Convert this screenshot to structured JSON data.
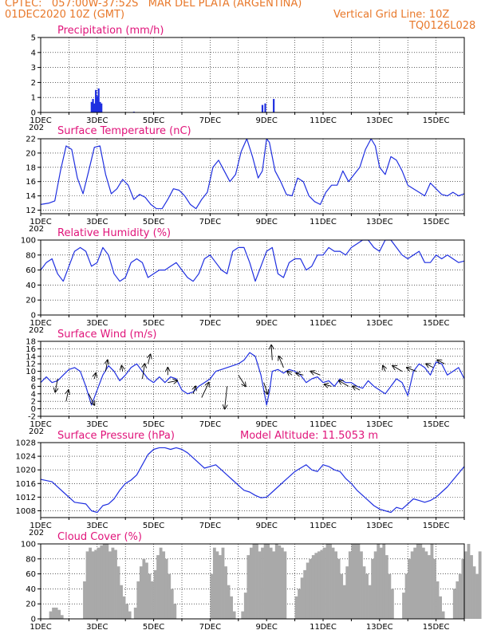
{
  "header": {
    "line1": "CPTEC:   057:00W-37:52S   MAR DEL PLATA (ARGENTINA)",
    "line2_left": "01DEC2020 10Z (GMT)",
    "line2_right": "Vertical Grid Line: 10Z",
    "line3_right": "TQ0126L028"
  },
  "colors": {
    "header": "#e8782a",
    "title": "#e0147a",
    "series": "#1f2fe0",
    "bars": "#1f2fe0",
    "cloud": "#a9a9a9",
    "arrows": "#000000"
  },
  "x_axis": {
    "labels": [
      "1DEC",
      "3DEC",
      "5DEC",
      "7DEC",
      "9DEC",
      "11DEC",
      "13DEC",
      "15DEC"
    ],
    "label_days": [
      1,
      3,
      5,
      7,
      9,
      11,
      13,
      15
    ],
    "grid_days": [
      1,
      2,
      3,
      4,
      5,
      6,
      7,
      8,
      9,
      10,
      11,
      12,
      13,
      14,
      15,
      16
    ],
    "start_day": 1,
    "end_day": 16,
    "corner_text": "202"
  },
  "chart_data": [
    {
      "type": "bar",
      "title": "Precipitation (mm/h)",
      "ylim": [
        0,
        5
      ],
      "yticks": [
        "0",
        "1",
        "2",
        "3",
        "4",
        "5"
      ],
      "ytick_values": [
        0,
        1,
        2,
        3,
        4,
        5
      ],
      "x_day": [
        2.8,
        2.85,
        2.9,
        2.95,
        3.0,
        3.05,
        3.1,
        3.15,
        4.3,
        8.85,
        8.95,
        9.25
      ],
      "values": [
        0.7,
        0.9,
        0.6,
        1.5,
        1.1,
        1.6,
        0.7,
        0.6,
        0.05,
        0.5,
        0.6,
        0.9
      ]
    },
    {
      "type": "line",
      "title": "Surface Temperature (nC)",
      "ylim": [
        11.5,
        22
      ],
      "yticks": [
        "12",
        "14",
        "16",
        "18",
        "20",
        "22"
      ],
      "ytick_values": [
        12,
        14,
        16,
        18,
        20,
        22
      ],
      "x_day": [
        1.0,
        1.3,
        1.5,
        1.7,
        1.9,
        2.1,
        2.3,
        2.5,
        2.7,
        2.9,
        3.1,
        3.3,
        3.5,
        3.7,
        3.9,
        4.1,
        4.3,
        4.5,
        4.7,
        4.9,
        5.1,
        5.3,
        5.5,
        5.7,
        5.9,
        6.1,
        6.3,
        6.5,
        6.7,
        6.9,
        7.1,
        7.3,
        7.5,
        7.7,
        7.9,
        8.1,
        8.3,
        8.5,
        8.7,
        8.85,
        9.0,
        9.1,
        9.3,
        9.5,
        9.7,
        9.9,
        10.1,
        10.3,
        10.5,
        10.7,
        10.9,
        11.1,
        11.3,
        11.5,
        11.7,
        11.9,
        12.1,
        12.3,
        12.5,
        12.7,
        12.85,
        13.0,
        13.2,
        13.4,
        13.6,
        13.8,
        14.0,
        14.2,
        14.4,
        14.6,
        14.8,
        15.0,
        15.2,
        15.4,
        15.6,
        15.8,
        16.0
      ],
      "values": [
        12.8,
        13.0,
        13.3,
        17.5,
        21.0,
        20.5,
        16.5,
        14.3,
        17.5,
        20.8,
        21.0,
        17.0,
        14.3,
        15.0,
        16.3,
        15.5,
        13.5,
        14.2,
        13.8,
        12.8,
        12.2,
        12.2,
        13.5,
        15.0,
        14.8,
        14.0,
        12.8,
        12.2,
        13.5,
        14.5,
        18.0,
        19.0,
        17.5,
        16.0,
        17.0,
        20.2,
        22.0,
        19.5,
        16.5,
        17.5,
        22.0,
        21.5,
        17.5,
        16.0,
        14.2,
        14.0,
        16.5,
        16.0,
        14.0,
        13.2,
        12.8,
        14.5,
        15.5,
        15.5,
        17.5,
        16.0,
        17.0,
        18.0,
        20.5,
        22.0,
        21.0,
        18.0,
        17.0,
        19.5,
        19.0,
        17.5,
        15.5,
        15.0,
        14.5,
        14.0,
        15.8,
        15.0,
        14.2,
        14.0,
        14.5,
        14.0,
        14.3
      ]
    },
    {
      "type": "line",
      "title": "Relative Humidity (%)",
      "ylim": [
        0,
        100
      ],
      "yticks": [
        "0",
        "20",
        "40",
        "60",
        "80",
        "100"
      ],
      "ytick_values": [
        0,
        20,
        40,
        60,
        80,
        100
      ],
      "x_day": [
        1.0,
        1.2,
        1.4,
        1.6,
        1.8,
        2.0,
        2.2,
        2.4,
        2.6,
        2.8,
        3.0,
        3.2,
        3.4,
        3.6,
        3.8,
        4.0,
        4.2,
        4.4,
        4.6,
        4.8,
        5.0,
        5.2,
        5.4,
        5.6,
        5.8,
        6.0,
        6.2,
        6.4,
        6.6,
        6.8,
        7.0,
        7.2,
        7.4,
        7.6,
        7.8,
        8.0,
        8.2,
        8.4,
        8.6,
        8.8,
        9.0,
        9.2,
        9.4,
        9.6,
        9.8,
        10.0,
        10.2,
        10.4,
        10.6,
        10.8,
        11.0,
        11.2,
        11.4,
        11.6,
        11.8,
        12.0,
        12.2,
        12.4,
        12.6,
        12.8,
        13.0,
        13.2,
        13.4,
        13.6,
        13.8,
        14.0,
        14.2,
        14.4,
        14.6,
        14.8,
        15.0,
        15.2,
        15.4,
        15.6,
        15.8,
        16.0
      ],
      "values": [
        60,
        70,
        75,
        55,
        45,
        65,
        85,
        90,
        85,
        65,
        70,
        90,
        80,
        55,
        45,
        50,
        70,
        75,
        70,
        50,
        55,
        60,
        60,
        65,
        70,
        60,
        50,
        45,
        55,
        75,
        80,
        70,
        60,
        55,
        85,
        90,
        90,
        70,
        45,
        65,
        85,
        90,
        55,
        50,
        70,
        75,
        75,
        60,
        65,
        80,
        80,
        90,
        85,
        85,
        80,
        90,
        95,
        100,
        100,
        90,
        85,
        100,
        100,
        90,
        80,
        75,
        80,
        85,
        70,
        70,
        80,
        75,
        80,
        75,
        70,
        72
      ]
    },
    {
      "type": "line",
      "title": "Surface Wind (m/s)",
      "ylim": [
        -2,
        18
      ],
      "yticks": [
        "-2",
        "0",
        "2",
        "4",
        "6",
        "8",
        "10",
        "12",
        "14",
        "16",
        "18"
      ],
      "ytick_values": [
        -2,
        0,
        2,
        4,
        6,
        8,
        10,
        12,
        14,
        16,
        18
      ],
      "x_day": [
        1.0,
        1.2,
        1.4,
        1.6,
        1.8,
        2.0,
        2.2,
        2.4,
        2.6,
        2.8,
        3.0,
        3.2,
        3.4,
        3.6,
        3.8,
        4.0,
        4.2,
        4.4,
        4.6,
        4.8,
        5.0,
        5.2,
        5.4,
        5.6,
        5.8,
        6.0,
        6.2,
        6.4,
        6.6,
        6.8,
        7.0,
        7.2,
        7.4,
        7.6,
        7.8,
        8.0,
        8.2,
        8.4,
        8.6,
        8.8,
        9.0,
        9.1,
        9.2,
        9.4,
        9.6,
        9.8,
        10.0,
        10.2,
        10.4,
        10.6,
        10.8,
        11.0,
        11.2,
        11.4,
        11.6,
        11.8,
        12.0,
        12.2,
        12.4,
        12.6,
        12.8,
        13.0,
        13.2,
        13.4,
        13.6,
        13.8,
        14.0,
        14.2,
        14.4,
        14.6,
        14.8,
        15.0,
        15.2,
        15.4,
        15.6,
        15.8,
        16.0
      ],
      "values": [
        7,
        8.5,
        7,
        7.5,
        9,
        10.5,
        11,
        10,
        6,
        1,
        5,
        9,
        11.5,
        10,
        7.5,
        9,
        11,
        12,
        10,
        8,
        7,
        8.5,
        7,
        8.5,
        8,
        5,
        4,
        4.5,
        6,
        7,
        8,
        10,
        10.5,
        11,
        11.5,
        12,
        13,
        15,
        14,
        9,
        1,
        4.5,
        10,
        10.5,
        9.5,
        10.5,
        10,
        9,
        7,
        8,
        8.5,
        7,
        7.5,
        6,
        8,
        7,
        7,
        6,
        5.5,
        7.5,
        6,
        5,
        4,
        6,
        8,
        7,
        3.5,
        10,
        12,
        11,
        9,
        12.5,
        12,
        9,
        10,
        11,
        8
      ]
    },
    {
      "type": "line",
      "title": "Surface Pressure (hPa)",
      "annotation": "Model Altitude: 11.5053 m",
      "ylim": [
        1006,
        1028
      ],
      "yticks": [
        "1008",
        "1012",
        "1016",
        "1020",
        "1024",
        "1028"
      ],
      "ytick_values": [
        1008,
        1012,
        1016,
        1020,
        1024,
        1028
      ],
      "x_day": [
        1.0,
        1.4,
        1.8,
        2.2,
        2.6,
        2.8,
        3.0,
        3.2,
        3.4,
        3.6,
        3.8,
        4.0,
        4.2,
        4.4,
        4.6,
        4.8,
        5.0,
        5.2,
        5.4,
        5.6,
        5.8,
        6.0,
        6.2,
        6.4,
        6.6,
        6.8,
        7.0,
        7.2,
        7.4,
        7.6,
        7.8,
        8.0,
        8.2,
        8.4,
        8.6,
        8.8,
        9.0,
        9.2,
        9.4,
        9.6,
        9.8,
        10.0,
        10.2,
        10.4,
        10.6,
        10.8,
        11.0,
        11.2,
        11.4,
        11.6,
        11.8,
        12.0,
        12.2,
        12.4,
        12.6,
        12.8,
        13.0,
        13.2,
        13.4,
        13.6,
        13.8,
        14.0,
        14.2,
        14.4,
        14.6,
        14.8,
        15.0,
        15.2,
        15.4,
        15.6,
        15.8,
        16.0
      ],
      "values": [
        1017.2,
        1016.5,
        1013.5,
        1010.5,
        1010,
        1008,
        1007.5,
        1009.5,
        1010,
        1011.5,
        1014,
        1016,
        1017,
        1018.5,
        1021.5,
        1024.5,
        1026,
        1026.5,
        1026.5,
        1026,
        1026.5,
        1026,
        1025,
        1023.5,
        1022,
        1020.5,
        1021,
        1021.5,
        1020,
        1018.5,
        1017,
        1015.5,
        1014,
        1013.5,
        1012.5,
        1011.8,
        1012,
        1013.5,
        1015,
        1016.5,
        1018,
        1019.5,
        1020.5,
        1021.5,
        1020,
        1019.5,
        1021.5,
        1021,
        1020,
        1019.5,
        1017.5,
        1016,
        1014,
        1012.5,
        1011,
        1009.5,
        1008.5,
        1008,
        1007.5,
        1009,
        1008.5,
        1010,
        1011.5,
        1011,
        1010.5,
        1011,
        1012,
        1013.5,
        1015,
        1017,
        1019,
        1021
      ]
    },
    {
      "type": "bar",
      "title": "Cloud Cover (%)",
      "ylim": [
        0,
        100
      ],
      "yticks": [
        "0",
        "20",
        "40",
        "60",
        "80",
        "100"
      ],
      "ytick_values": [
        0,
        20,
        40,
        60,
        80,
        100
      ],
      "x_day_start": 1.0,
      "x_day_step": 0.1,
      "values": [
        0,
        0,
        0,
        10,
        15,
        15,
        12,
        5,
        0,
        0,
        0,
        0,
        0,
        0,
        0,
        50,
        90,
        95,
        90,
        92,
        95,
        98,
        100,
        100,
        90,
        95,
        92,
        70,
        45,
        30,
        20,
        10,
        0,
        15,
        50,
        70,
        80,
        75,
        60,
        50,
        65,
        85,
        95,
        90,
        80,
        60,
        40,
        20,
        0,
        0,
        0,
        0,
        0,
        0,
        0,
        0,
        0,
        0,
        0,
        0,
        60,
        95,
        90,
        85,
        95,
        70,
        45,
        30,
        10,
        0,
        0,
        10,
        35,
        85,
        95,
        100,
        100,
        90,
        95,
        100,
        100,
        95,
        90,
        100,
        98,
        95,
        90,
        0,
        0,
        0,
        30,
        40,
        55,
        65,
        75,
        80,
        85,
        88,
        90,
        92,
        95,
        100,
        100,
        95,
        90,
        80,
        60,
        45,
        70,
        90,
        100,
        100,
        100,
        90,
        70,
        60,
        45,
        80,
        90,
        100,
        95,
        100,
        85,
        60,
        40,
        0,
        0,
        0,
        35,
        60,
        80,
        90,
        95,
        100,
        100,
        95,
        90,
        85,
        100,
        80,
        50,
        30,
        10,
        0,
        0,
        0,
        40,
        50,
        60,
        80,
        90,
        100,
        85,
        70,
        60,
        90
      ]
    }
  ],
  "wind_arrows": [
    {
      "x_day": 1.6,
      "y": 8,
      "u": -0.5,
      "v": -3.5
    },
    {
      "x_day": 1.9,
      "y": 2,
      "u": 0.5,
      "v": 3
    },
    {
      "x_day": 2.7,
      "y": 4,
      "u": 1.2,
      "v": -3
    },
    {
      "x_day": 2.9,
      "y": 8,
      "u": 0.3,
      "v": 1.5
    },
    {
      "x_day": 3.3,
      "y": 10,
      "u": 0.4,
      "v": 3
    },
    {
      "x_day": 3.9,
      "y": 10,
      "u": -0.2,
      "v": 1.5
    },
    {
      "x_day": 4.6,
      "y": 8,
      "u": 0.5,
      "v": 4
    },
    {
      "x_day": 4.8,
      "y": 12,
      "u": 0.5,
      "v": 2.5
    },
    {
      "x_day": 5.5,
      "y": 9,
      "u": 0,
      "v": 2
    },
    {
      "x_day": 5.5,
      "y": 7,
      "u": 2,
      "v": 0.5
    },
    {
      "x_day": 6.4,
      "y": 4,
      "u": 0.5,
      "v": 2
    },
    {
      "x_day": 6.7,
      "y": 3,
      "u": 1.5,
      "v": 4
    },
    {
      "x_day": 7.6,
      "y": 6,
      "u": -0.5,
      "v": -6
    },
    {
      "x_day": 8.0,
      "y": 9,
      "u": 1.5,
      "v": -3
    },
    {
      "x_day": 8.9,
      "y": 7,
      "u": 0.8,
      "v": -3
    },
    {
      "x_day": 9.2,
      "y": 13,
      "u": -0.2,
      "v": 4
    },
    {
      "x_day": 9.6,
      "y": 11,
      "u": -1,
      "v": 3
    },
    {
      "x_day": 9.9,
      "y": 9,
      "u": -1,
      "v": 1
    },
    {
      "x_day": 10.3,
      "y": 9,
      "u": -1.5,
      "v": 0.5
    },
    {
      "x_day": 10.9,
      "y": 9,
      "u": -2,
      "v": 1
    },
    {
      "x_day": 11.3,
      "y": 6,
      "u": -1.5,
      "v": 0.5
    },
    {
      "x_day": 11.9,
      "y": 6,
      "u": -2,
      "v": 1.5
    },
    {
      "x_day": 12.3,
      "y": 5,
      "u": -1.5,
      "v": 1
    },
    {
      "x_day": 13.2,
      "y": 10,
      "u": -0.5,
      "v": 1.5
    },
    {
      "x_day": 13.8,
      "y": 10,
      "u": -2,
      "v": 1.5
    },
    {
      "x_day": 14.3,
      "y": 10,
      "u": -2,
      "v": 1
    },
    {
      "x_day": 14.9,
      "y": 11,
      "u": -1.5,
      "v": 1
    },
    {
      "x_day": 15.3,
      "y": 12,
      "u": -1.5,
      "v": 1
    }
  ]
}
